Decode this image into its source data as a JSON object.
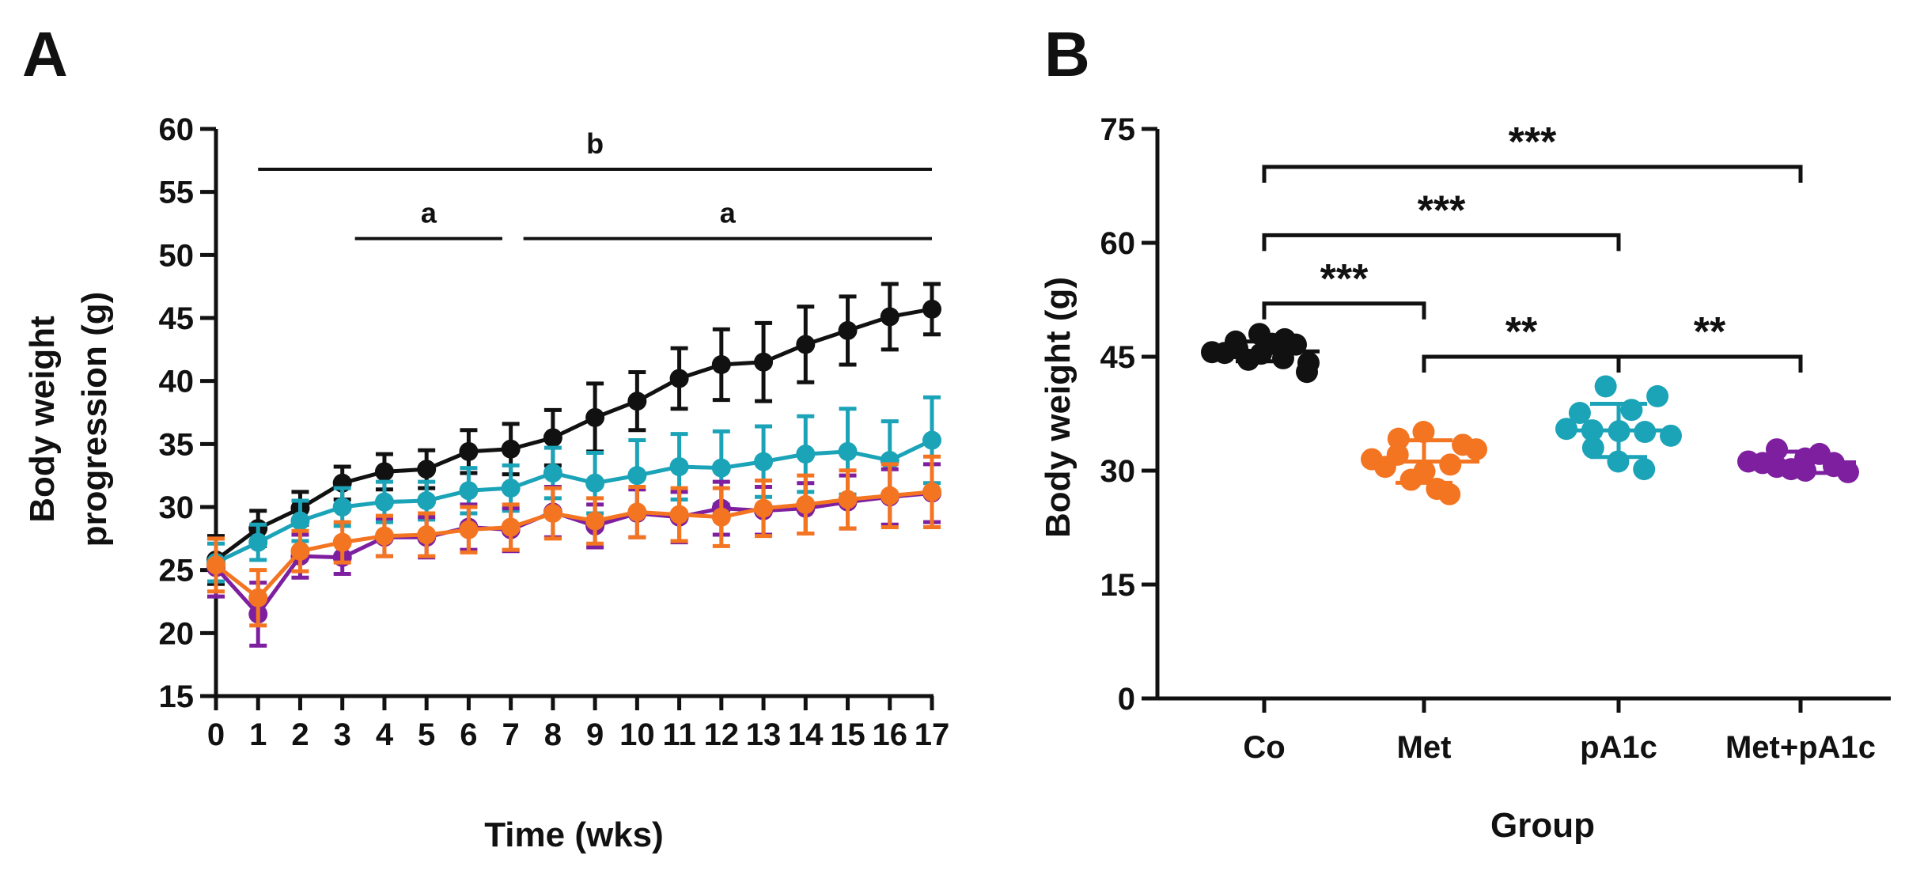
{
  "chart_data": [
    {
      "panel": "A",
      "type": "line",
      "xlabel": "Time (wks)",
      "ylabel_lines": [
        "Body weight",
        "progression (g)"
      ],
      "x": [
        0,
        1,
        2,
        3,
        4,
        5,
        6,
        7,
        8,
        9,
        10,
        11,
        12,
        13,
        14,
        15,
        16,
        17
      ],
      "xticks": [
        "0",
        "1",
        "2",
        "3",
        "4",
        "5",
        "6",
        "7",
        "8",
        "9",
        "10",
        "11",
        "12",
        "13",
        "14",
        "15",
        "16",
        "17"
      ],
      "ylim": [
        15,
        60
      ],
      "yticks": [
        "15",
        "20",
        "25",
        "30",
        "35",
        "40",
        "45",
        "50",
        "55",
        "60"
      ],
      "series": [
        {
          "name": "Co",
          "color": "#111111",
          "values": [
            25.8,
            28.3,
            29.9,
            31.9,
            32.8,
            33.0,
            34.4,
            34.6,
            35.5,
            37.1,
            38.4,
            40.2,
            41.3,
            41.5,
            42.9,
            44.0,
            45.1,
            45.7
          ],
          "errors": [
            1.9,
            1.4,
            1.3,
            1.3,
            1.4,
            1.5,
            1.7,
            2.0,
            2.2,
            2.7,
            2.3,
            2.4,
            2.8,
            3.1,
            3.0,
            2.7,
            2.6,
            2.0
          ]
        },
        {
          "name": "pA1c",
          "color": "#1ba3b8",
          "values": [
            25.6,
            27.2,
            28.9,
            30.0,
            30.4,
            30.5,
            31.3,
            31.5,
            32.7,
            31.9,
            32.5,
            33.2,
            33.1,
            33.6,
            34.2,
            34.4,
            33.7,
            35.3
          ],
          "errors": [
            1.5,
            1.4,
            1.6,
            1.5,
            1.6,
            1.5,
            1.8,
            1.8,
            2.0,
            2.4,
            2.8,
            2.6,
            2.9,
            2.8,
            3.0,
            3.4,
            3.1,
            3.4
          ]
        },
        {
          "name": "Met+pA1c",
          "color": "#7e1fa0",
          "values": [
            25.2,
            21.5,
            26.1,
            26.0,
            27.6,
            27.6,
            28.4,
            28.2,
            29.6,
            28.5,
            29.5,
            29.2,
            29.9,
            29.7,
            29.9,
            30.4,
            30.8,
            31.1
          ],
          "errors": [
            2.3,
            2.5,
            1.7,
            1.3,
            1.5,
            1.6,
            1.8,
            1.7,
            2.0,
            1.7,
            1.9,
            2.0,
            2.1,
            1.9,
            2.0,
            2.1,
            2.2,
            2.3
          ]
        },
        {
          "name": "Met",
          "color": "#f47521",
          "values": [
            25.4,
            22.8,
            26.5,
            27.2,
            27.7,
            27.8,
            28.2,
            28.4,
            29.5,
            28.9,
            29.6,
            29.4,
            29.2,
            29.9,
            30.2,
            30.6,
            30.9,
            31.2
          ],
          "errors": [
            2.1,
            2.2,
            1.6,
            1.6,
            1.6,
            1.7,
            1.8,
            1.8,
            2.0,
            1.8,
            2.0,
            2.1,
            2.3,
            2.2,
            2.3,
            2.3,
            2.5,
            2.8
          ]
        }
      ],
      "significance_bars": [
        {
          "label": "b",
          "from_x": 1,
          "to_x": 17,
          "y": 56.8
        },
        {
          "label": "a",
          "from_x": 3.3,
          "to_x": 6.8,
          "y": 51.3
        },
        {
          "label": "a",
          "from_x": 7.3,
          "to_x": 17,
          "y": 51.3
        }
      ]
    },
    {
      "panel": "B",
      "type": "scatter",
      "xlabel": "Group",
      "ylabel": "Body weight (g)",
      "categories": [
        "Co",
        "Met",
        "pA1c",
        "Met+pA1c"
      ],
      "ylim": [
        0,
        75
      ],
      "yticks": [
        "0",
        "15",
        "30",
        "45",
        "60",
        "75"
      ],
      "groups": [
        {
          "name": "Co",
          "color": "#111111",
          "mean": 45.7,
          "sd": 1.3,
          "points": [
            45.6,
            45.5,
            46.1,
            47.0,
            44.6,
            45.4,
            48.0,
            46.7,
            47.3,
            44.8,
            46.6,
            44.2,
            43.0
          ]
        },
        {
          "name": "Met",
          "color": "#f47521",
          "mean": 31.2,
          "sd": 2.8,
          "points": [
            31.5,
            30.5,
            34.2,
            32.1,
            28.8,
            29.9,
            35.1,
            27.6,
            30.8,
            26.9,
            33.4,
            32.8
          ]
        },
        {
          "name": "pA1c",
          "color": "#1ba3b8",
          "mean": 35.3,
          "sd": 3.5,
          "points": [
            35.5,
            37.6,
            33.0,
            35.3,
            41.1,
            35.2,
            31.2,
            38.0,
            35.1,
            30.2,
            39.8,
            34.6
          ]
        },
        {
          "name": "Met+pA1c",
          "color": "#7e1fa0",
          "mean": 31.1,
          "sd": 1.4,
          "points": [
            31.2,
            31.0,
            30.5,
            32.8,
            30.2,
            31.6,
            30.0,
            32.2,
            31.0,
            30.6,
            29.8
          ]
        }
      ],
      "significance_brackets": [
        {
          "from": "Co",
          "to": "Met+pA1c",
          "label": "***",
          "y": 70
        },
        {
          "from": "Co",
          "to": "pA1c",
          "label": "***",
          "y": 61
        },
        {
          "from": "Co",
          "to": "Met",
          "label": "***",
          "y": 52
        },
        {
          "from": "Met",
          "to": "pA1c",
          "label": "**",
          "y": 45
        },
        {
          "from": "pA1c",
          "to": "Met+pA1c",
          "label": "**",
          "y": 45
        }
      ]
    }
  ]
}
